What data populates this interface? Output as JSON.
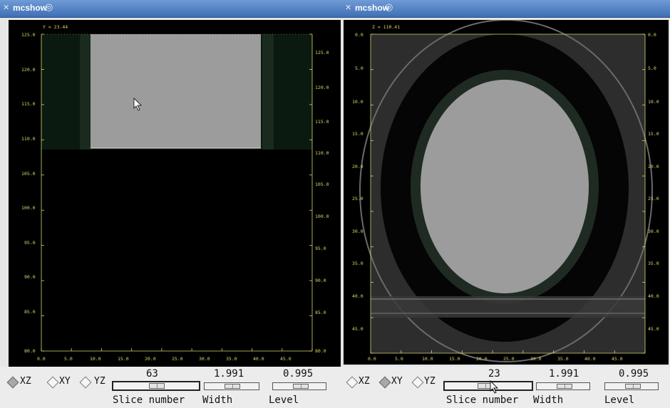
{
  "left_window": {
    "title": "mcshow",
    "coord_label": "Y = 23.44",
    "y_ticks": [
      "125.0",
      "120.0",
      "115.0",
      "110.0",
      "105.0",
      "100.0",
      "95.0",
      "90.0",
      "85.0",
      "80.0"
    ],
    "x_ticks": [
      "0.0",
      "5.0",
      "10.0",
      "15.0",
      "20.0",
      "25.0",
      "30.0",
      "35.0",
      "40.0",
      "45.0"
    ],
    "plane_options": [
      "XZ",
      "XY",
      "YZ"
    ],
    "selected_plane": "XZ",
    "slice_value": "63",
    "width_value": "1.991",
    "level_value": "0.995",
    "slice_label": "Slice number",
    "width_label": "Width",
    "level_label": "Level"
  },
  "right_window": {
    "title": "mcshow",
    "coord_label": "Z = 110.41",
    "y_ticks": [
      "0.0",
      "5.0",
      "10.0",
      "15.0",
      "20.0",
      "25.0",
      "30.0",
      "35.0",
      "40.0",
      "45.0"
    ],
    "x_ticks": [
      "0.0",
      "5.0",
      "10.0",
      "15.0",
      "20.0",
      "25.0",
      "30.0",
      "35.0",
      "40.0",
      "45.0"
    ],
    "plane_options": [
      "XZ",
      "XY",
      "YZ"
    ],
    "selected_plane": "XY",
    "slice_value": "23",
    "width_value": "1.991",
    "level_value": "0.995",
    "slice_label": "Slice number",
    "width_label": "Width",
    "level_label": "Level"
  },
  "colors": {
    "axis": "#d8d66a",
    "titlebar": "#4a7cc0",
    "phantom_gray": "#9c9c9c"
  },
  "icons": [
    "window-menu-icon",
    "window-gfx-icon",
    "mouse-pointer-icon"
  ]
}
